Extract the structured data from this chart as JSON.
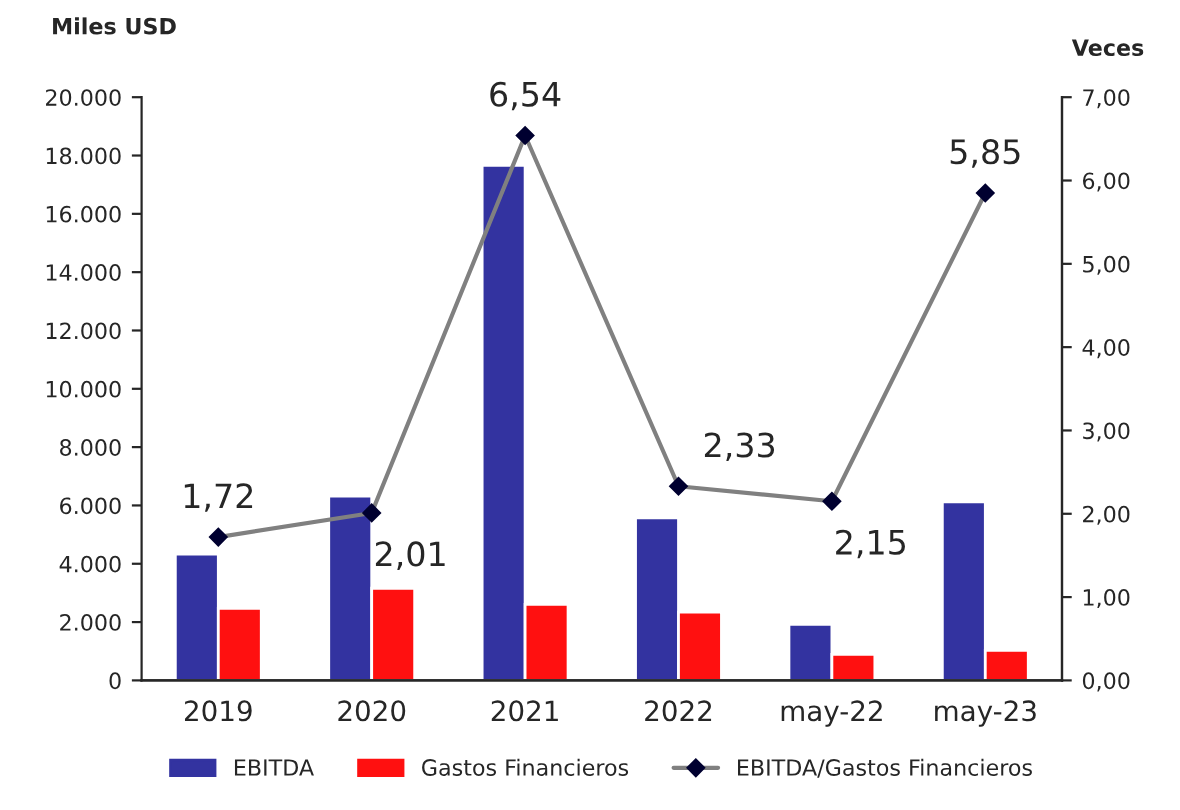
{
  "chart_data": {
    "type": "bar",
    "ylabel": "Miles USD",
    "y2label": "Veces",
    "categories": [
      "2019",
      "2020",
      "2021",
      "2022",
      "may-22",
      "may-23"
    ],
    "series": [
      {
        "name": "EBITDA",
        "color": "#3333a0",
        "values": [
          4330,
          6320,
          17660,
          5570,
          1920,
          6120
        ]
      },
      {
        "name": "Gastos Financieros",
        "color": "#ff1010",
        "values": [
          2470,
          3160,
          2610,
          2340,
          890,
          1030
        ]
      },
      {
        "name": "EBITDA/Gastos Financieros",
        "type": "line",
        "axis": "y2",
        "color": "#808080",
        "marker": "diamond",
        "values": [
          1.72,
          2.01,
          6.54,
          2.33,
          2.15,
          5.85
        ],
        "value_labels": [
          "1,72",
          "2,01",
          "6,54",
          "2,33",
          "2,15",
          "5,85"
        ]
      }
    ],
    "ylim": [
      0,
      20000
    ],
    "yticks": [
      {
        "value": 0,
        "label": "0"
      },
      {
        "value": 2000,
        "label": "2.000"
      },
      {
        "value": 4000,
        "label": "4.000"
      },
      {
        "value": 6000,
        "label": "6.000"
      },
      {
        "value": 8000,
        "label": "8.000"
      },
      {
        "value": 10000,
        "label": "10.000"
      },
      {
        "value": 12000,
        "label": "12.000"
      },
      {
        "value": 14000,
        "label": "14.000"
      },
      {
        "value": 16000,
        "label": "16.000"
      },
      {
        "value": 18000,
        "label": "18.000"
      },
      {
        "value": 20000,
        "label": "20.000"
      }
    ],
    "y2lim": [
      0,
      7
    ],
    "y2ticks": [
      {
        "value": 0,
        "label": "0,00"
      },
      {
        "value": 1,
        "label": "1,00"
      },
      {
        "value": 2,
        "label": "2,00"
      },
      {
        "value": 3,
        "label": "3,00"
      },
      {
        "value": 4,
        "label": "4,00"
      },
      {
        "value": 5,
        "label": "5,00"
      },
      {
        "value": 6,
        "label": "6,00"
      },
      {
        "value": 7,
        "label": "7,00"
      }
    ],
    "grid": false,
    "legend": "bottom"
  }
}
